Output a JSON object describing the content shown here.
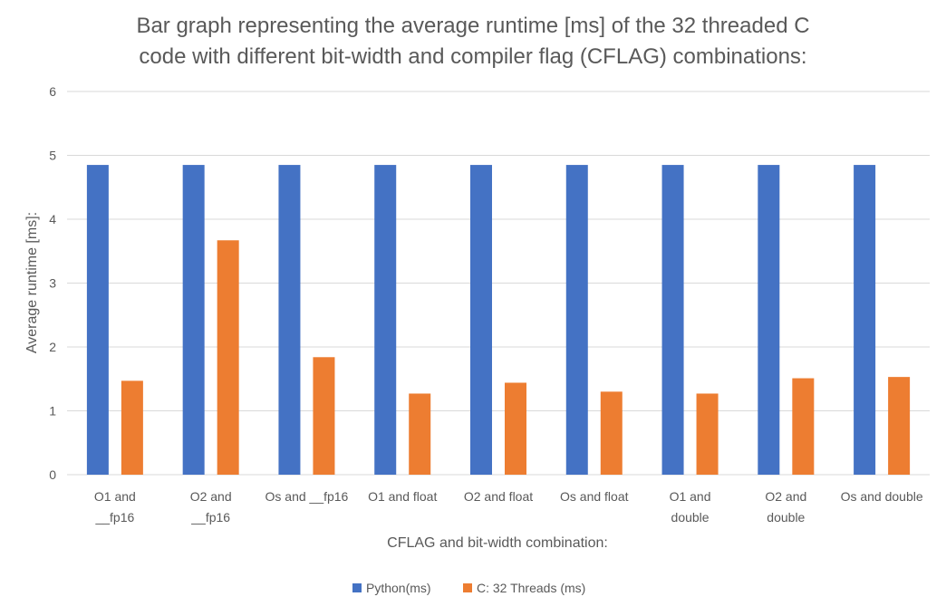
{
  "chart_data": {
    "type": "bar",
    "title_lines": [
      "Bar graph representing the average runtime [ms] of the 32 threaded C",
      "code with different bit-width and compiler flag (CFLAG) combinations:"
    ],
    "xlabel": "CFLAG and bit-width combination:",
    "ylabel": "Average runtime [ms]:",
    "ylim": [
      0,
      6
    ],
    "yticks": [
      0,
      1,
      2,
      3,
      4,
      5,
      6
    ],
    "grid": true,
    "legend_position": "bottom",
    "categories": [
      [
        "O1 and",
        "__fp16"
      ],
      [
        "O2 and",
        "__fp16"
      ],
      [
        "Os and __fp16"
      ],
      [
        "O1 and float"
      ],
      [
        "O2 and float"
      ],
      [
        "Os and float"
      ],
      [
        "O1 and",
        "double"
      ],
      [
        "O2 and",
        "double"
      ],
      [
        "Os and double"
      ]
    ],
    "series": [
      {
        "name": "Python(ms)",
        "color": "#4472C4",
        "values": [
          4.85,
          4.85,
          4.85,
          4.85,
          4.85,
          4.85,
          4.85,
          4.85,
          4.85
        ]
      },
      {
        "name": "C: 32 Threads (ms)",
        "color": "#ED7D31",
        "values": [
          1.47,
          3.67,
          1.84,
          1.27,
          1.44,
          1.3,
          1.27,
          1.51,
          1.53
        ]
      }
    ]
  }
}
